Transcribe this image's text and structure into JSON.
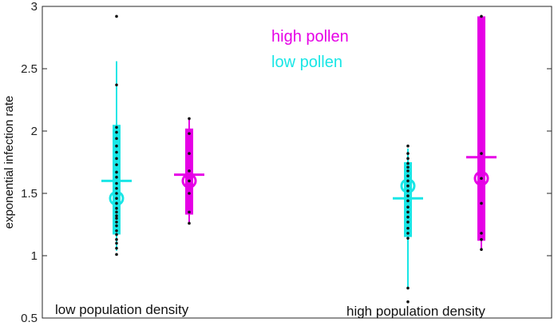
{
  "chart_data": {
    "type": "scatter",
    "ylabel": "exponential infection rate",
    "ylim": [
      0.5,
      3
    ],
    "yticks": [
      "0.5",
      "1",
      "1.5",
      "2",
      "2.5",
      "3"
    ],
    "grid": false,
    "legend": {
      "placement": "top-center",
      "entries": [
        {
          "label": "high pollen",
          "color": "#e600e6"
        },
        {
          "label": "low pollen",
          "color": "#19e6e6"
        }
      ]
    },
    "groups": [
      {
        "label": "low population density"
      },
      {
        "label": "high population density"
      }
    ],
    "series": [
      {
        "condition": "low pollen",
        "group": "low population density",
        "color": "#19e6e6",
        "whisker": [
          1.04,
          2.56
        ],
        "box": [
          1.17,
          2.05
        ],
        "mean": 1.6,
        "median": 1.46,
        "points": [
          1.01,
          1.06,
          1.1,
          1.13,
          1.17,
          1.2,
          1.24,
          1.27,
          1.3,
          1.32,
          1.35,
          1.38,
          1.42,
          1.46,
          1.5,
          1.54,
          1.58,
          1.63,
          1.67,
          1.73,
          1.78,
          1.83,
          1.88,
          1.94,
          1.99,
          2.03,
          2.37,
          2.92
        ]
      },
      {
        "condition": "high pollen",
        "group": "low population density",
        "color": "#e600e6",
        "whisker": [
          1.26,
          2.1
        ],
        "box": [
          1.33,
          2.02
        ],
        "mean": 1.65,
        "median": 1.6,
        "points": [
          1.26,
          1.35,
          1.5,
          1.6,
          1.68,
          1.82,
          1.98,
          2.1
        ]
      },
      {
        "condition": "low pollen",
        "group": "high population density",
        "color": "#19e6e6",
        "whisker": [
          0.74,
          1.86
        ],
        "box": [
          1.15,
          1.75
        ],
        "mean": 1.46,
        "median": 1.56,
        "points": [
          0.63,
          0.74,
          1.14,
          1.18,
          1.22,
          1.27,
          1.31,
          1.35,
          1.39,
          1.44,
          1.48,
          1.52,
          1.56,
          1.6,
          1.64,
          1.68,
          1.71,
          1.74,
          1.78,
          1.82,
          1.88
        ]
      },
      {
        "condition": "high pollen",
        "group": "high population density",
        "color": "#e600e6",
        "whisker": [
          1.05,
          2.93
        ],
        "box": [
          1.12,
          2.92
        ],
        "mean": 1.79,
        "median": 1.62,
        "points": [
          1.05,
          1.13,
          1.18,
          1.42,
          1.62,
          1.82,
          2.92
        ]
      }
    ]
  }
}
